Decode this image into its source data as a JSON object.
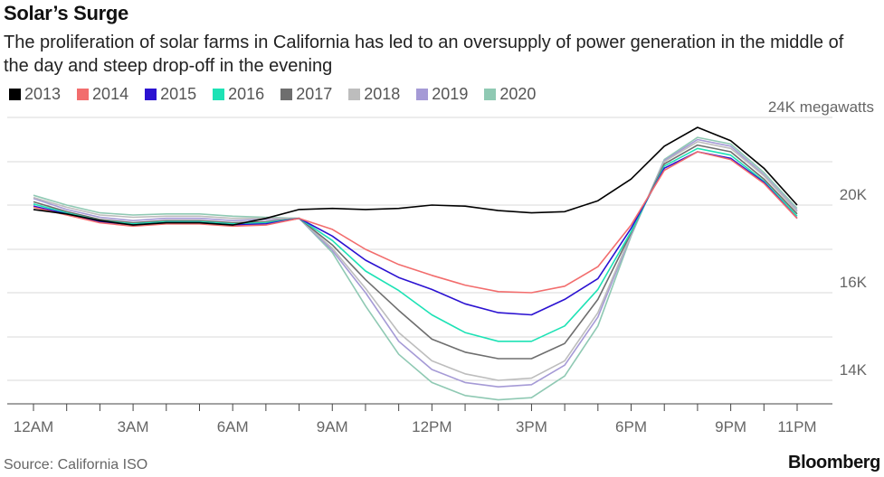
{
  "header": {
    "title": "Solar’s Surge",
    "subtitle": "The proliferation of solar farms in California has led to an oversupply of power generation in the middle of the day and steep drop-off in the evening"
  },
  "footer": {
    "source": "Source: California ISO",
    "brand": "Bloomberg"
  },
  "chart_data": {
    "type": "line",
    "title": "Solar’s Surge",
    "xlabel": "",
    "ylabel": "",
    "y_unit_label": "24K megawatts",
    "ylim": [
      13600,
      24400
    ],
    "grid": true,
    "legend_placement": "top",
    "x_ticks": [
      "12AM",
      "3AM",
      "6AM",
      "9AM",
      "12PM",
      "3PM",
      "6PM",
      "9PM",
      "11PM"
    ],
    "x_tick_hours": [
      0,
      3,
      6,
      9,
      12,
      15,
      18,
      21,
      23
    ],
    "y_ticks": [
      {
        "value": 24000,
        "label": "24K megawatts"
      },
      {
        "value": 22000,
        "label": ""
      },
      {
        "value": 20000,
        "label": "20K"
      },
      {
        "value": 18000,
        "label": ""
      },
      {
        "value": 16000,
        "label": "16K"
      },
      {
        "value": 15000,
        "label": ""
      },
      {
        "value": 14000,
        "label": "14K"
      }
    ],
    "x": [
      0,
      1,
      2,
      3,
      4,
      5,
      6,
      7,
      8,
      9,
      10,
      11,
      12,
      13,
      14,
      15,
      16,
      17,
      18,
      19,
      20,
      21,
      22,
      23
    ],
    "series": [
      {
        "name": "2013",
        "color": "#000000",
        "values": [
          19800,
          19600,
          19300,
          19100,
          19200,
          19200,
          19100,
          19400,
          19800,
          19850,
          19800,
          19850,
          20000,
          19950,
          19750,
          19650,
          19700,
          20200,
          21200,
          22700,
          23550,
          22950,
          21700,
          20000
        ]
      },
      {
        "name": "2014",
        "color": "#f26d6d",
        "values": [
          19900,
          19550,
          19200,
          19050,
          19150,
          19150,
          19050,
          19100,
          19400,
          18900,
          18000,
          17300,
          16800,
          16350,
          16050,
          16000,
          16300,
          17200,
          19100,
          21600,
          22450,
          22100,
          21000,
          19400
        ]
      },
      {
        "name": "2015",
        "color": "#2b12d1",
        "values": [
          19950,
          19600,
          19250,
          19100,
          19200,
          19200,
          19100,
          19150,
          19400,
          18600,
          17500,
          16700,
          16150,
          15750,
          15550,
          15500,
          15850,
          16650,
          18950,
          21700,
          22450,
          22150,
          21050,
          19400
        ]
      },
      {
        "name": "2016",
        "color": "#1de2b5",
        "values": [
          20050,
          19650,
          19300,
          19150,
          19250,
          19250,
          19150,
          19200,
          19400,
          18400,
          17000,
          16100,
          15500,
          15100,
          14900,
          14900,
          15250,
          16150,
          18800,
          21800,
          22600,
          22300,
          21100,
          19500
        ]
      },
      {
        "name": "2017",
        "color": "#6e6e6e",
        "values": [
          20150,
          19700,
          19350,
          19200,
          19300,
          19300,
          19200,
          19250,
          19400,
          18200,
          16600,
          15600,
          14950,
          14650,
          14500,
          14500,
          14850,
          15850,
          18750,
          21900,
          22750,
          22450,
          21200,
          19600
        ]
      },
      {
        "name": "2018",
        "color": "#bdbdbd",
        "values": [
          20350,
          19900,
          19550,
          19450,
          19500,
          19500,
          19400,
          19400,
          19400,
          18050,
          16200,
          15100,
          14450,
          14150,
          14000,
          14050,
          14450,
          15550,
          18700,
          22000,
          22900,
          22600,
          21350,
          19700
        ]
      },
      {
        "name": "2019",
        "color": "#a59ad6",
        "values": [
          20300,
          19800,
          19450,
          19300,
          19400,
          19400,
          19300,
          19350,
          19400,
          17950,
          16000,
          14900,
          14250,
          13950,
          13850,
          13900,
          14350,
          15450,
          18650,
          22050,
          23000,
          22700,
          21400,
          19750
        ]
      },
      {
        "name": "2020",
        "color": "#8fc9b3",
        "values": [
          20450,
          20000,
          19650,
          19550,
          19600,
          19600,
          19500,
          19450,
          19400,
          17850,
          15700,
          14600,
          13950,
          13650,
          13550,
          13600,
          14100,
          15250,
          18600,
          22100,
          23100,
          22800,
          21500,
          19850
        ]
      }
    ]
  }
}
